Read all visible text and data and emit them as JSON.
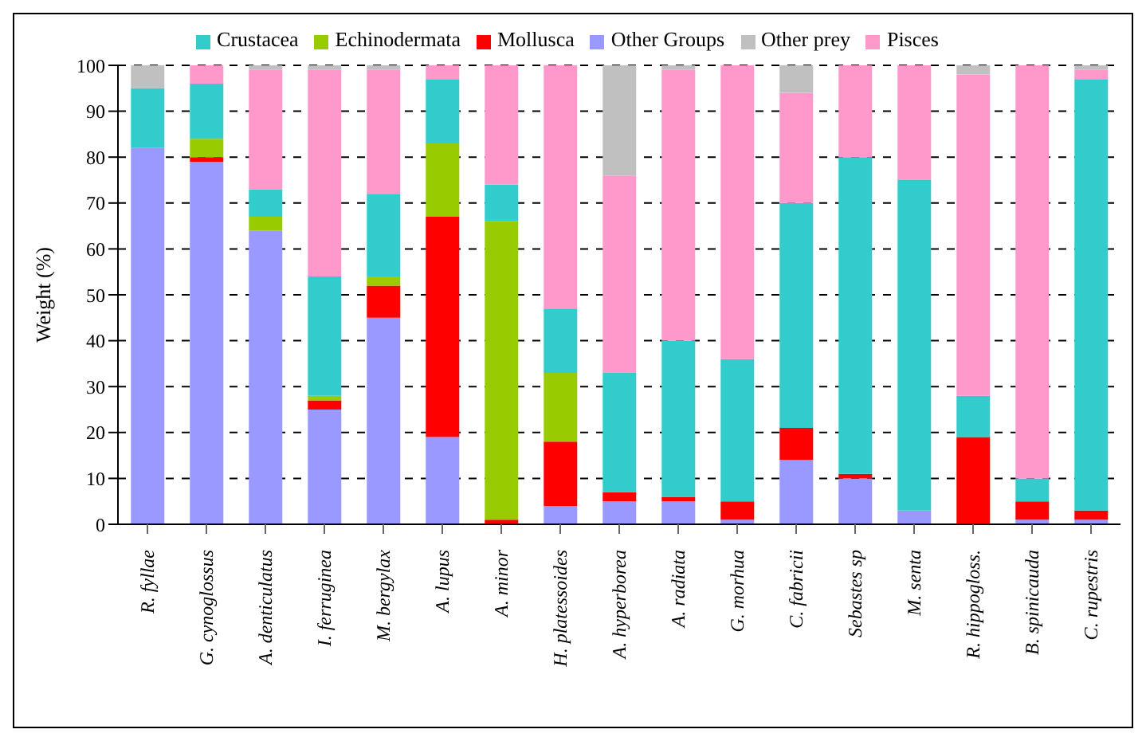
{
  "chart_data": {
    "type": "bar",
    "stacked": true,
    "ylabel": "Weight (%)",
    "categories": [
      "R. fyllae",
      "G. cynoglossus",
      "A. denticulatus",
      "I. ferruginea",
      "M. bergylax",
      "A. lupus",
      "A. minor",
      "H. platessoides",
      "A. hyperborea",
      "A. radiata",
      "G. morhua",
      "C. fabricii",
      "Sebastes sp",
      "M. senta",
      "R. hippogloss.",
      "B. spinicauda",
      "C. rupestris"
    ],
    "series": [
      {
        "name": "Other Groups",
        "color": "#9999ff",
        "values": [
          82,
          79,
          64,
          25,
          45,
          19,
          0,
          4,
          5,
          5,
          1,
          14,
          10,
          3,
          0,
          1,
          1
        ]
      },
      {
        "name": "Mollusca",
        "color": "#ff0000",
        "values": [
          0,
          1,
          0,
          2,
          7,
          48,
          1,
          14,
          2,
          1,
          4,
          7,
          1,
          0,
          19,
          4,
          2
        ]
      },
      {
        "name": "Echinodermata",
        "color": "#99cc00",
        "values": [
          0,
          4,
          3,
          1,
          2,
          16,
          65,
          15,
          0,
          0,
          0,
          0,
          0,
          0,
          0,
          0,
          0
        ]
      },
      {
        "name": "Crustacea",
        "color": "#33cccc",
        "values": [
          13,
          12,
          6,
          26,
          18,
          14,
          8,
          14,
          26,
          34,
          31,
          49,
          69,
          72,
          9,
          5,
          94
        ]
      },
      {
        "name": "Pisces",
        "color": "#ff99cc",
        "values": [
          0,
          4,
          26,
          45,
          27,
          3,
          26,
          53,
          43,
          59,
          64,
          24,
          20,
          25,
          70,
          90,
          2
        ]
      },
      {
        "name": "Other prey",
        "color": "#c0c0c0",
        "values": [
          5,
          0,
          1,
          1,
          1,
          0,
          0,
          0,
          24,
          1,
          0,
          6,
          0,
          0,
          2,
          0,
          1
        ]
      }
    ],
    "ylim": [
      0,
      100
    ],
    "yticks": [
      0,
      10,
      20,
      30,
      40,
      50,
      60,
      70,
      80,
      90,
      100
    ],
    "grid": "y",
    "legend": "top"
  }
}
